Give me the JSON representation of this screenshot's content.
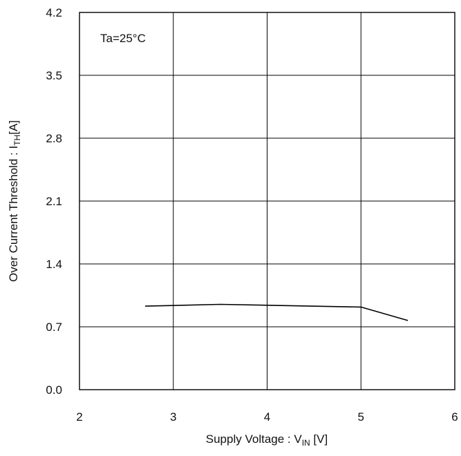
{
  "chart_data": {
    "type": "line",
    "title": "",
    "annotation": "Ta=25°C",
    "xlabel": {
      "prefix": "Supply Voltage : V",
      "subscript": "IN",
      "suffix": " [V]"
    },
    "ylabel": {
      "prefix": "Over Current Threshold : I",
      "subscript": "TH",
      "suffix": "[A]"
    },
    "xlim": [
      2,
      6
    ],
    "ylim": [
      0.0,
      4.2
    ],
    "xticks": [
      "2",
      "3",
      "4",
      "5",
      "6"
    ],
    "yticks": [
      "0.0",
      "0.7",
      "1.4",
      "2.1",
      "2.8",
      "3.5",
      "4.2"
    ],
    "grid": true,
    "series": [
      {
        "x": [
          2.7,
          3.5,
          4.0,
          5.0,
          5.5
        ],
        "y": [
          0.93,
          0.95,
          0.94,
          0.92,
          0.77
        ]
      }
    ],
    "colors": {
      "line": "#000000",
      "grid": "#000000",
      "background": "#ffffff"
    }
  }
}
